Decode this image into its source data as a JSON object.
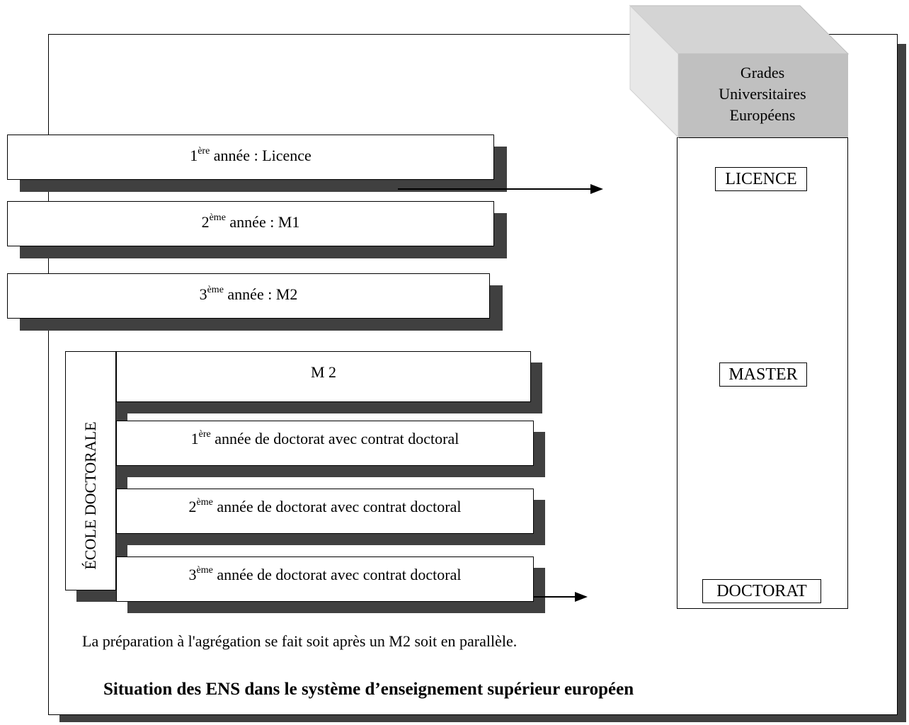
{
  "header": {
    "grades_title": [
      "Grades",
      "Universitaires",
      "Européens"
    ]
  },
  "years": [
    {
      "num": "1",
      "sup": "ère",
      "text": " année : Licence"
    },
    {
      "num": "2",
      "sup": "ème",
      "text": " année : M1"
    },
    {
      "num": "3",
      "sup": "ème",
      "text": " année : M2"
    }
  ],
  "ecole": {
    "label": "ÉCOLE DOCTORALE",
    "rows": [
      {
        "num": "",
        "sup": "",
        "text": "M 2"
      },
      {
        "num": "1",
        "sup": "ère",
        "text": " année de doctorat avec contrat doctoral"
      },
      {
        "num": "2",
        "sup": "ème",
        "text": " année de doctorat avec contrat doctoral"
      },
      {
        "num": "3",
        "sup": "ème",
        "text": " année de doctorat avec contrat doctoral"
      }
    ]
  },
  "grades": [
    "LICENCE",
    "MASTER",
    "DOCTORAT"
  ],
  "note": "La préparation à l'agrégation se fait soit après un M2 soit en parallèle.",
  "caption": "Situation des ENS dans le système d’enseignement supérieur européen",
  "colors": {
    "shadow": "#404040",
    "cube_front": "#c0c0c0",
    "cube_top": "#d4d4d4",
    "cube_side": "#e8e8e8"
  }
}
